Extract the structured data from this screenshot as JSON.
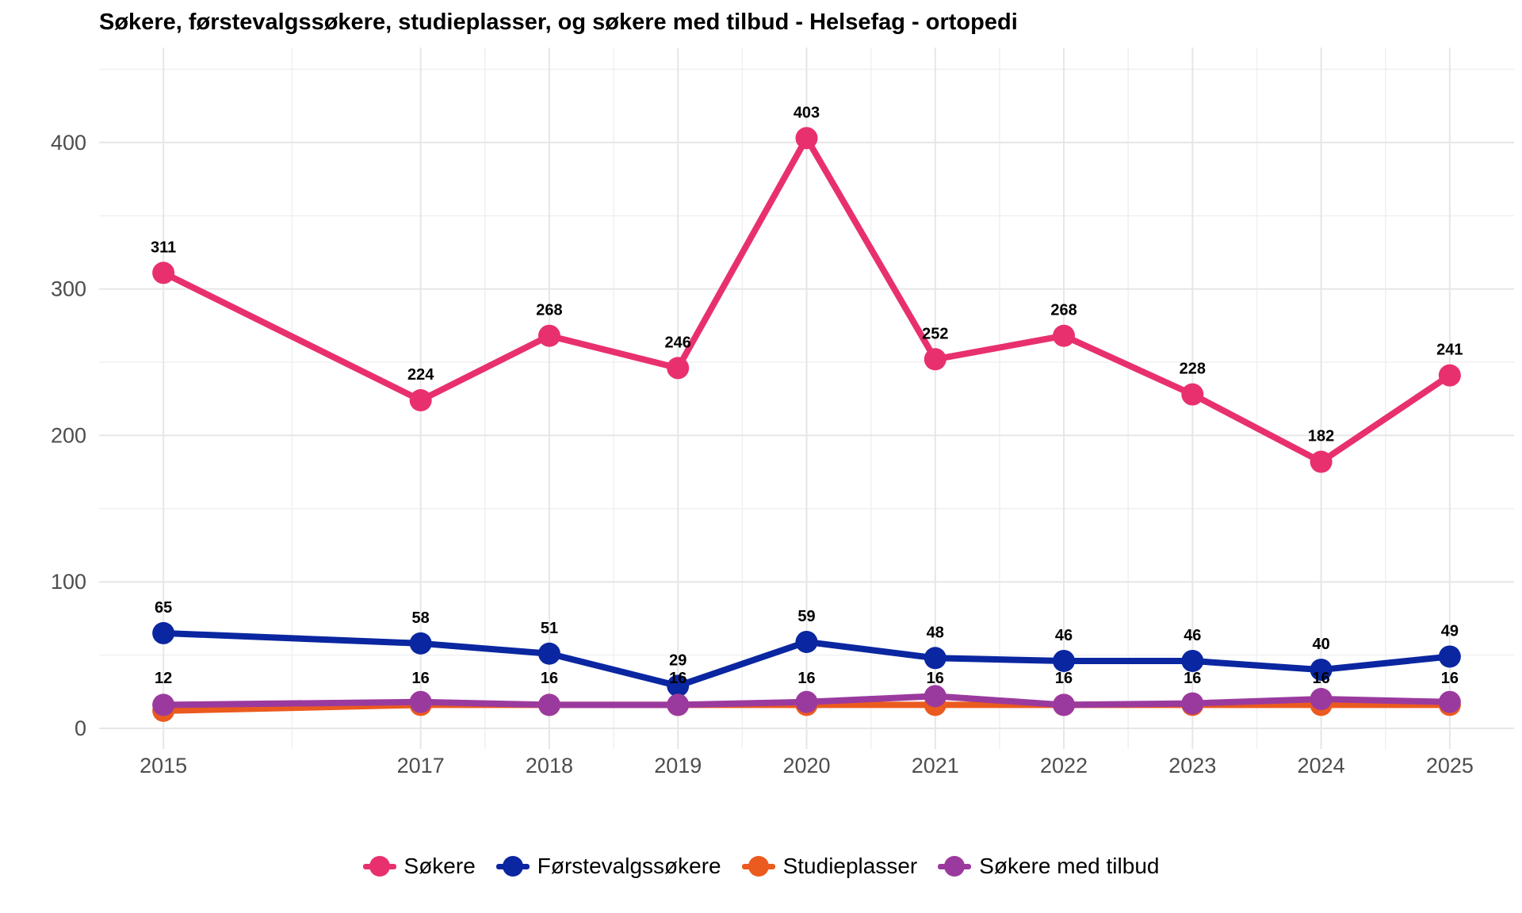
{
  "chart_data": {
    "type": "line",
    "title": "Søkere, førstevalgssøkere, studieplasser, og søkere med tilbud - Helsefag - ortopedi",
    "xlabel": "",
    "ylabel": "",
    "x": [
      2015,
      2017,
      2018,
      2019,
      2020,
      2021,
      2022,
      2023,
      2024,
      2025
    ],
    "xlim": [
      2014.5,
      2025.5
    ],
    "ylim": [
      0,
      450
    ],
    "yticks": [
      0,
      100,
      200,
      300,
      400
    ],
    "grid": true,
    "legend_position": "bottom",
    "series": [
      {
        "name": "Søkere",
        "color": "#E8306F",
        "values": [
          311,
          224,
          268,
          246,
          403,
          252,
          268,
          228,
          182,
          241
        ],
        "labels": [
          "311",
          "224",
          "268",
          "246",
          "403",
          "252",
          "268",
          "228",
          "182",
          "241"
        ]
      },
      {
        "name": "Førstevalgssøkere",
        "color": "#0A26A0",
        "values": [
          65,
          58,
          51,
          29,
          59,
          48,
          46,
          46,
          40,
          49
        ],
        "labels": [
          "65",
          "58",
          "51",
          "29",
          "59",
          "48",
          "46",
          "46",
          "40",
          "49"
        ]
      },
      {
        "name": "Studieplasser",
        "color": "#EB5A1E",
        "values": [
          12,
          16,
          16,
          16,
          16,
          16,
          16,
          16,
          16,
          16
        ],
        "labels": [
          "12",
          "16",
          "16",
          "16",
          "16",
          "16",
          "16",
          "16",
          "16",
          "16"
        ]
      },
      {
        "name": "Søkere med tilbud",
        "color": "#9B3A9E",
        "values": [
          16,
          18,
          16,
          16,
          18,
          22,
          16,
          17,
          20,
          18
        ],
        "labels": []
      }
    ]
  }
}
